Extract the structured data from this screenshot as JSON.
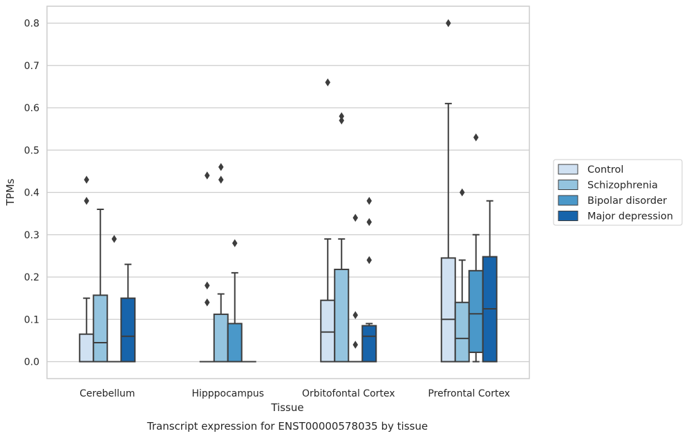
{
  "chart_data": {
    "type": "box",
    "title": "Transcript expression for ENST00000578035 by tissue",
    "xlabel": "Tissue",
    "ylabel": "TPMs",
    "ylim": [
      -0.04,
      0.84
    ],
    "yticks": [
      0.0,
      0.1,
      0.2,
      0.3,
      0.4,
      0.5,
      0.6,
      0.7,
      0.8
    ],
    "ytick_labels": [
      "0.0",
      "0.1",
      "0.2",
      "0.3",
      "0.4",
      "0.5",
      "0.6",
      "0.7",
      "0.8"
    ],
    "grid": true,
    "legend_position": "right",
    "categories": [
      "Cerebellum",
      "Hipppocampus",
      "Orbitofontal Cortex",
      "Prefrontal Cortex"
    ],
    "series": [
      {
        "name": "Control",
        "color": "#d0e1f2",
        "boxes": [
          {
            "whislo": 0.0,
            "q1": 0.0,
            "med": 0.0,
            "q3": 0.065,
            "whishi": 0.15,
            "fliers": [
              0.38,
              0.43
            ]
          },
          {
            "whislo": 0.0,
            "q1": 0.0,
            "med": 0.0,
            "q3": 0.0,
            "whishi": 0.0,
            "fliers": [
              0.14,
              0.18,
              0.44
            ]
          },
          {
            "whislo": 0.0,
            "q1": 0.0,
            "med": 0.07,
            "q3": 0.145,
            "whishi": 0.29,
            "fliers": [
              0.66
            ]
          },
          {
            "whislo": 0.0,
            "q1": 0.0,
            "med": 0.1,
            "q3": 0.245,
            "whishi": 0.61,
            "fliers": [
              0.8
            ]
          }
        ]
      },
      {
        "name": "Schizophrenia",
        "color": "#94c4df",
        "boxes": [
          {
            "whislo": 0.0,
            "q1": 0.0,
            "med": 0.045,
            "q3": 0.157,
            "whishi": 0.36,
            "fliers": []
          },
          {
            "whislo": 0.0,
            "q1": 0.0,
            "med": 0.0,
            "q3": 0.112,
            "whishi": 0.16,
            "fliers": [
              0.43,
              0.46
            ]
          },
          {
            "whislo": 0.0,
            "q1": 0.0,
            "med": 0.0,
            "q3": 0.218,
            "whishi": 0.29,
            "fliers": [
              0.57,
              0.58
            ]
          },
          {
            "whislo": 0.0,
            "q1": 0.0,
            "med": 0.055,
            "q3": 0.14,
            "whishi": 0.24,
            "fliers": [
              0.4
            ]
          }
        ]
      },
      {
        "name": "Bipolar disorder",
        "color": "#4a98c9",
        "boxes": [
          {
            "whislo": 0.0,
            "q1": 0.0,
            "med": 0.0,
            "q3": 0.0,
            "whishi": 0.0,
            "fliers": [
              0.29
            ]
          },
          {
            "whislo": 0.0,
            "q1": 0.0,
            "med": 0.0,
            "q3": 0.09,
            "whishi": 0.21,
            "fliers": [
              0.28
            ]
          },
          {
            "whislo": 0.0,
            "q1": 0.0,
            "med": 0.0,
            "q3": 0.0,
            "whishi": 0.0,
            "fliers": [
              0.04,
              0.11,
              0.34
            ]
          },
          {
            "whislo": 0.0,
            "q1": 0.022,
            "med": 0.113,
            "q3": 0.215,
            "whishi": 0.3,
            "fliers": [
              0.53
            ]
          }
        ]
      },
      {
        "name": "Major depression",
        "color": "#1764ab",
        "boxes": [
          {
            "whislo": 0.0,
            "q1": 0.0,
            "med": 0.06,
            "q3": 0.15,
            "whishi": 0.23,
            "fliers": []
          },
          {
            "whislo": 0.0,
            "q1": 0.0,
            "med": 0.0,
            "q3": 0.0,
            "whishi": 0.0,
            "fliers": []
          },
          {
            "whislo": 0.0,
            "q1": 0.0,
            "med": 0.06,
            "q3": 0.085,
            "whishi": 0.09,
            "fliers": [
              0.24,
              0.33,
              0.38
            ]
          },
          {
            "whislo": 0.0,
            "q1": 0.0,
            "med": 0.125,
            "q3": 0.248,
            "whishi": 0.38,
            "fliers": []
          }
        ]
      }
    ]
  }
}
